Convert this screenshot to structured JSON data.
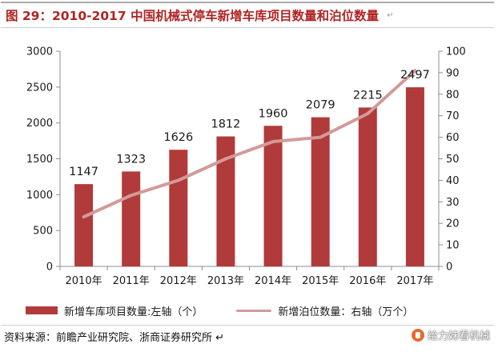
{
  "figure": {
    "title": "图 29：2010-2017 中国机械式停车新增车库项目数量和泊位数量",
    "return_mark": "↵",
    "source": "资料来源：前瞻产业研究院、浙商证券研究所 ↵",
    "watermark": "给力妹看机械"
  },
  "chart_data": {
    "type": "bar+line",
    "categories": [
      "2010年",
      "2011年",
      "2012年",
      "2013年",
      "2014年",
      "2015年",
      "2016年",
      "2017年"
    ],
    "series": [
      {
        "name": "新增车库项目数量:左轴（个）",
        "type": "bar",
        "axis": "left",
        "color": "#b13b3a",
        "values": [
          1147,
          1323,
          1626,
          1812,
          1960,
          2079,
          2215,
          2497
        ],
        "labels": [
          "1147",
          "1323",
          "1626",
          "1812",
          "1960",
          "2079",
          "2215",
          "2497"
        ]
      },
      {
        "name": "新增泊位数量：右轴（万个）",
        "type": "line",
        "axis": "right",
        "color": "#d39a9a",
        "values": [
          23,
          33,
          40,
          50,
          58,
          60,
          71,
          91
        ]
      }
    ],
    "y_left": {
      "min": 0,
      "max": 3000,
      "ticks": [
        "0",
        "500",
        "1000",
        "1500",
        "2000",
        "2500",
        "3000"
      ]
    },
    "y_right": {
      "min": 0,
      "max": 100,
      "ticks": [
        "0",
        "10",
        "20",
        "30",
        "40",
        "50",
        "60",
        "70",
        "80",
        "90",
        "100"
      ]
    },
    "legend_position": "bottom"
  }
}
